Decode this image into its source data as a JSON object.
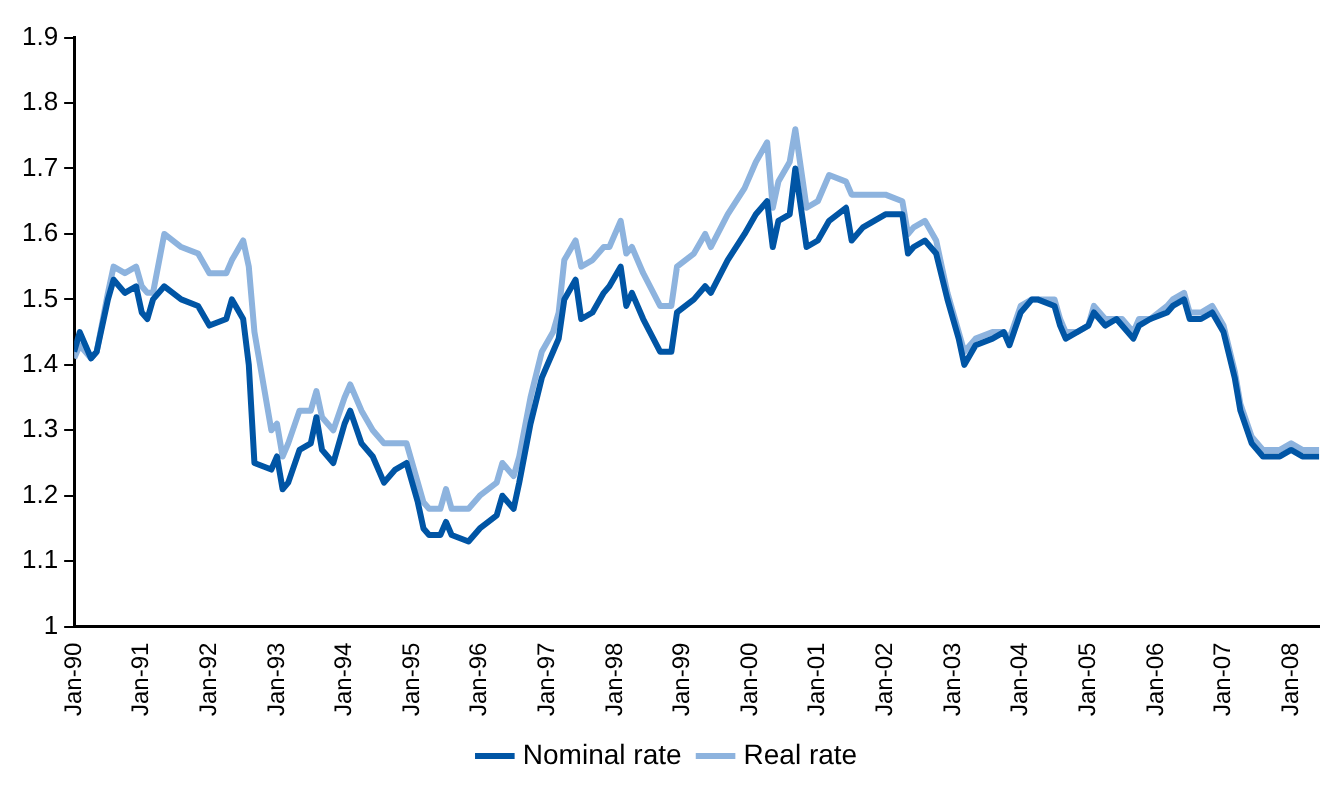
{
  "chart_data": {
    "type": "line",
    "x": [
      "1990-01",
      "1990-02",
      "1990-03",
      "1990-04",
      "1990-05",
      "1990-07",
      "1990-08",
      "1990-10",
      "1990-12",
      "1991-01",
      "1991-02",
      "1991-03",
      "1991-05",
      "1991-08",
      "1991-11",
      "1992-01",
      "1992-04",
      "1992-05",
      "1992-07",
      "1992-08",
      "1992-09",
      "1992-12",
      "1993-01",
      "1993-02",
      "1993-03",
      "1993-05",
      "1993-07",
      "1993-08",
      "1993-09",
      "1993-11",
      "1994-01",
      "1994-02",
      "1994-04",
      "1994-06",
      "1994-08",
      "1994-10",
      "1994-12",
      "1995-02",
      "1995-03",
      "1995-04",
      "1995-06",
      "1995-07",
      "1995-08",
      "1995-11",
      "1996-01",
      "1996-04",
      "1996-05",
      "1996-07",
      "1996-08",
      "1996-10",
      "1996-12",
      "1997-02",
      "1997-03",
      "1997-04",
      "1997-06",
      "1997-07",
      "1997-09",
      "1997-11",
      "1997-12",
      "1998-02",
      "1998-03",
      "1998-04",
      "1998-06",
      "1998-09",
      "1998-11",
      "1998-12",
      "1999-03",
      "1999-05",
      "1999-06",
      "1999-09",
      "1999-12",
      "2000-02",
      "2000-04",
      "2000-05",
      "2000-06",
      "2000-08",
      "2000-09",
      "2000-11",
      "2001-01",
      "2001-03",
      "2001-06",
      "2001-07",
      "2001-09",
      "2001-11",
      "2002-01",
      "2002-04",
      "2002-05",
      "2002-06",
      "2002-08",
      "2002-10",
      "2002-12",
      "2003-02",
      "2003-03",
      "2003-05",
      "2003-08",
      "2003-10",
      "2003-11",
      "2004-01",
      "2004-03",
      "2004-04",
      "2004-07",
      "2004-08",
      "2004-09",
      "2004-11",
      "2005-01",
      "2005-02",
      "2005-04",
      "2005-06",
      "2005-07",
      "2005-09",
      "2005-10",
      "2005-12",
      "2006-03",
      "2006-04",
      "2006-06",
      "2006-07",
      "2006-09",
      "2006-11",
      "2007-01",
      "2007-03",
      "2007-04",
      "2007-06",
      "2007-08",
      "2007-10",
      "2007-11",
      "2008-01",
      "2008-03",
      "2008-06"
    ],
    "series": [
      {
        "name": "Nominal rate",
        "color": "#0055a5",
        "values": [
          1.42,
          1.45,
          1.43,
          1.41,
          1.42,
          1.5,
          1.53,
          1.51,
          1.52,
          1.48,
          1.47,
          1.5,
          1.52,
          1.5,
          1.49,
          1.46,
          1.47,
          1.5,
          1.47,
          1.4,
          1.25,
          1.24,
          1.26,
          1.21,
          1.22,
          1.27,
          1.28,
          1.32,
          1.27,
          1.25,
          1.31,
          1.33,
          1.28,
          1.26,
          1.22,
          1.24,
          1.25,
          1.19,
          1.15,
          1.14,
          1.14,
          1.16,
          1.14,
          1.13,
          1.15,
          1.17,
          1.2,
          1.18,
          1.22,
          1.31,
          1.38,
          1.42,
          1.44,
          1.5,
          1.53,
          1.47,
          1.48,
          1.51,
          1.52,
          1.55,
          1.49,
          1.51,
          1.47,
          1.42,
          1.42,
          1.48,
          1.5,
          1.52,
          1.51,
          1.56,
          1.6,
          1.63,
          1.65,
          1.58,
          1.62,
          1.63,
          1.7,
          1.58,
          1.59,
          1.62,
          1.64,
          1.59,
          1.61,
          1.62,
          1.63,
          1.63,
          1.57,
          1.58,
          1.59,
          1.57,
          1.5,
          1.44,
          1.4,
          1.43,
          1.44,
          1.45,
          1.43,
          1.48,
          1.5,
          1.5,
          1.49,
          1.46,
          1.44,
          1.45,
          1.46,
          1.48,
          1.46,
          1.47,
          1.46,
          1.44,
          1.46,
          1.47,
          1.48,
          1.49,
          1.5,
          1.47,
          1.47,
          1.48,
          1.45,
          1.38,
          1.33,
          1.28,
          1.26,
          1.26,
          1.26,
          1.27,
          1.26,
          1.26
        ]
      },
      {
        "name": "Real rate",
        "color": "#8db3de",
        "values": [
          1.41,
          1.43,
          1.42,
          1.41,
          1.42,
          1.51,
          1.55,
          1.54,
          1.55,
          1.52,
          1.51,
          1.51,
          1.6,
          1.58,
          1.57,
          1.54,
          1.54,
          1.56,
          1.59,
          1.55,
          1.45,
          1.3,
          1.31,
          1.26,
          1.28,
          1.33,
          1.33,
          1.36,
          1.32,
          1.3,
          1.35,
          1.37,
          1.33,
          1.3,
          1.28,
          1.28,
          1.28,
          1.22,
          1.19,
          1.18,
          1.18,
          1.21,
          1.18,
          1.18,
          1.2,
          1.22,
          1.25,
          1.23,
          1.26,
          1.35,
          1.42,
          1.45,
          1.48,
          1.56,
          1.59,
          1.55,
          1.56,
          1.58,
          1.58,
          1.62,
          1.57,
          1.58,
          1.54,
          1.49,
          1.49,
          1.55,
          1.57,
          1.6,
          1.58,
          1.63,
          1.67,
          1.71,
          1.74,
          1.64,
          1.68,
          1.71,
          1.76,
          1.64,
          1.65,
          1.69,
          1.68,
          1.66,
          1.66,
          1.66,
          1.66,
          1.65,
          1.6,
          1.61,
          1.62,
          1.59,
          1.51,
          1.45,
          1.42,
          1.44,
          1.45,
          1.45,
          1.44,
          1.49,
          1.5,
          1.5,
          1.5,
          1.47,
          1.45,
          1.45,
          1.46,
          1.49,
          1.47,
          1.47,
          1.47,
          1.45,
          1.47,
          1.47,
          1.49,
          1.5,
          1.51,
          1.48,
          1.48,
          1.49,
          1.46,
          1.39,
          1.34,
          1.29,
          1.27,
          1.27,
          1.27,
          1.28,
          1.27,
          1.27
        ]
      }
    ],
    "xlim": [
      "1990-01",
      "2008-06"
    ],
    "xticks": [
      {
        "value": "1990-01",
        "label": "Jan-90"
      },
      {
        "value": "1991-01",
        "label": "Jan-91"
      },
      {
        "value": "1992-01",
        "label": "Jan-92"
      },
      {
        "value": "1993-01",
        "label": "Jan-93"
      },
      {
        "value": "1994-01",
        "label": "Jan-94"
      },
      {
        "value": "1995-01",
        "label": "Jan-95"
      },
      {
        "value": "1996-01",
        "label": "Jan-96"
      },
      {
        "value": "1997-01",
        "label": "Jan-97"
      },
      {
        "value": "1998-01",
        "label": "Jan-98"
      },
      {
        "value": "1999-01",
        "label": "Jan-99"
      },
      {
        "value": "2000-01",
        "label": "Jan-00"
      },
      {
        "value": "2001-01",
        "label": "Jan-01"
      },
      {
        "value": "2002-01",
        "label": "Jan-02"
      },
      {
        "value": "2003-01",
        "label": "Jan-03"
      },
      {
        "value": "2004-01",
        "label": "Jan-04"
      },
      {
        "value": "2005-01",
        "label": "Jan-05"
      },
      {
        "value": "2006-01",
        "label": "Jan-06"
      },
      {
        "value": "2007-01",
        "label": "Jan-07"
      },
      {
        "value": "2008-01",
        "label": "Jan-08"
      }
    ],
    "ylim": [
      1,
      1.9
    ],
    "yticks": [
      1,
      1.1,
      1.2,
      1.3,
      1.4,
      1.5,
      1.6,
      1.7,
      1.8,
      1.9
    ],
    "grid": false,
    "legend": "bottom",
    "marker": "none",
    "line_style": "solid"
  }
}
